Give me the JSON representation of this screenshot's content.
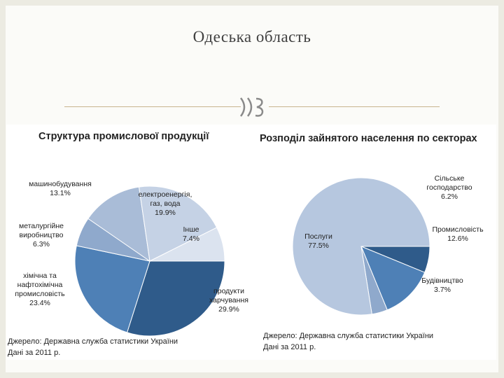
{
  "page": {
    "title": "Одеська область"
  },
  "chart_data": [
    {
      "type": "pie",
      "title": "Структура промислової продукції",
      "slices": [
        {
          "label": "продукти харчування",
          "value": 29.9,
          "display": "29.9%",
          "color": "#2f5b8a"
        },
        {
          "label": "хімічна та нафтохімічна промисловість",
          "value": 23.4,
          "display": "23.4%",
          "color": "#4e80b6"
        },
        {
          "label": "металургійне виробництво",
          "value": 6.3,
          "display": "6.3%",
          "color": "#8fa9cc"
        },
        {
          "label": "машинобудування",
          "value": 13.1,
          "display": "13.1%",
          "color": "#a9bcd7"
        },
        {
          "label": "електроенергія, газ, вода",
          "value": 19.9,
          "display": "19.9%",
          "color": "#c5d2e5"
        },
        {
          "label": "Інше",
          "value": 7.4,
          "display": "7.4%",
          "color": "#dbe3ef"
        }
      ],
      "source": "Джерело: Державна служба статистики України",
      "note": "Дані за 2011 р."
    },
    {
      "type": "pie",
      "title": "Розподіл зайнятого населення по секторах",
      "slices": [
        {
          "label": "Сільське господарство",
          "value": 6.2,
          "display": "6.2%",
          "color": "#2f5b8a"
        },
        {
          "label": "Промисловість",
          "value": 12.6,
          "display": "12.6%",
          "color": "#4e80b6"
        },
        {
          "label": "Будівництво",
          "value": 3.7,
          "display": "3.7%",
          "color": "#8fa9cc"
        },
        {
          "label": "Послуги",
          "value": 77.5,
          "display": "77.5%",
          "color": "#b6c7df"
        }
      ],
      "source": "Джерело: Державна служба статистики України",
      "note": "Дані за 2011 р."
    }
  ]
}
